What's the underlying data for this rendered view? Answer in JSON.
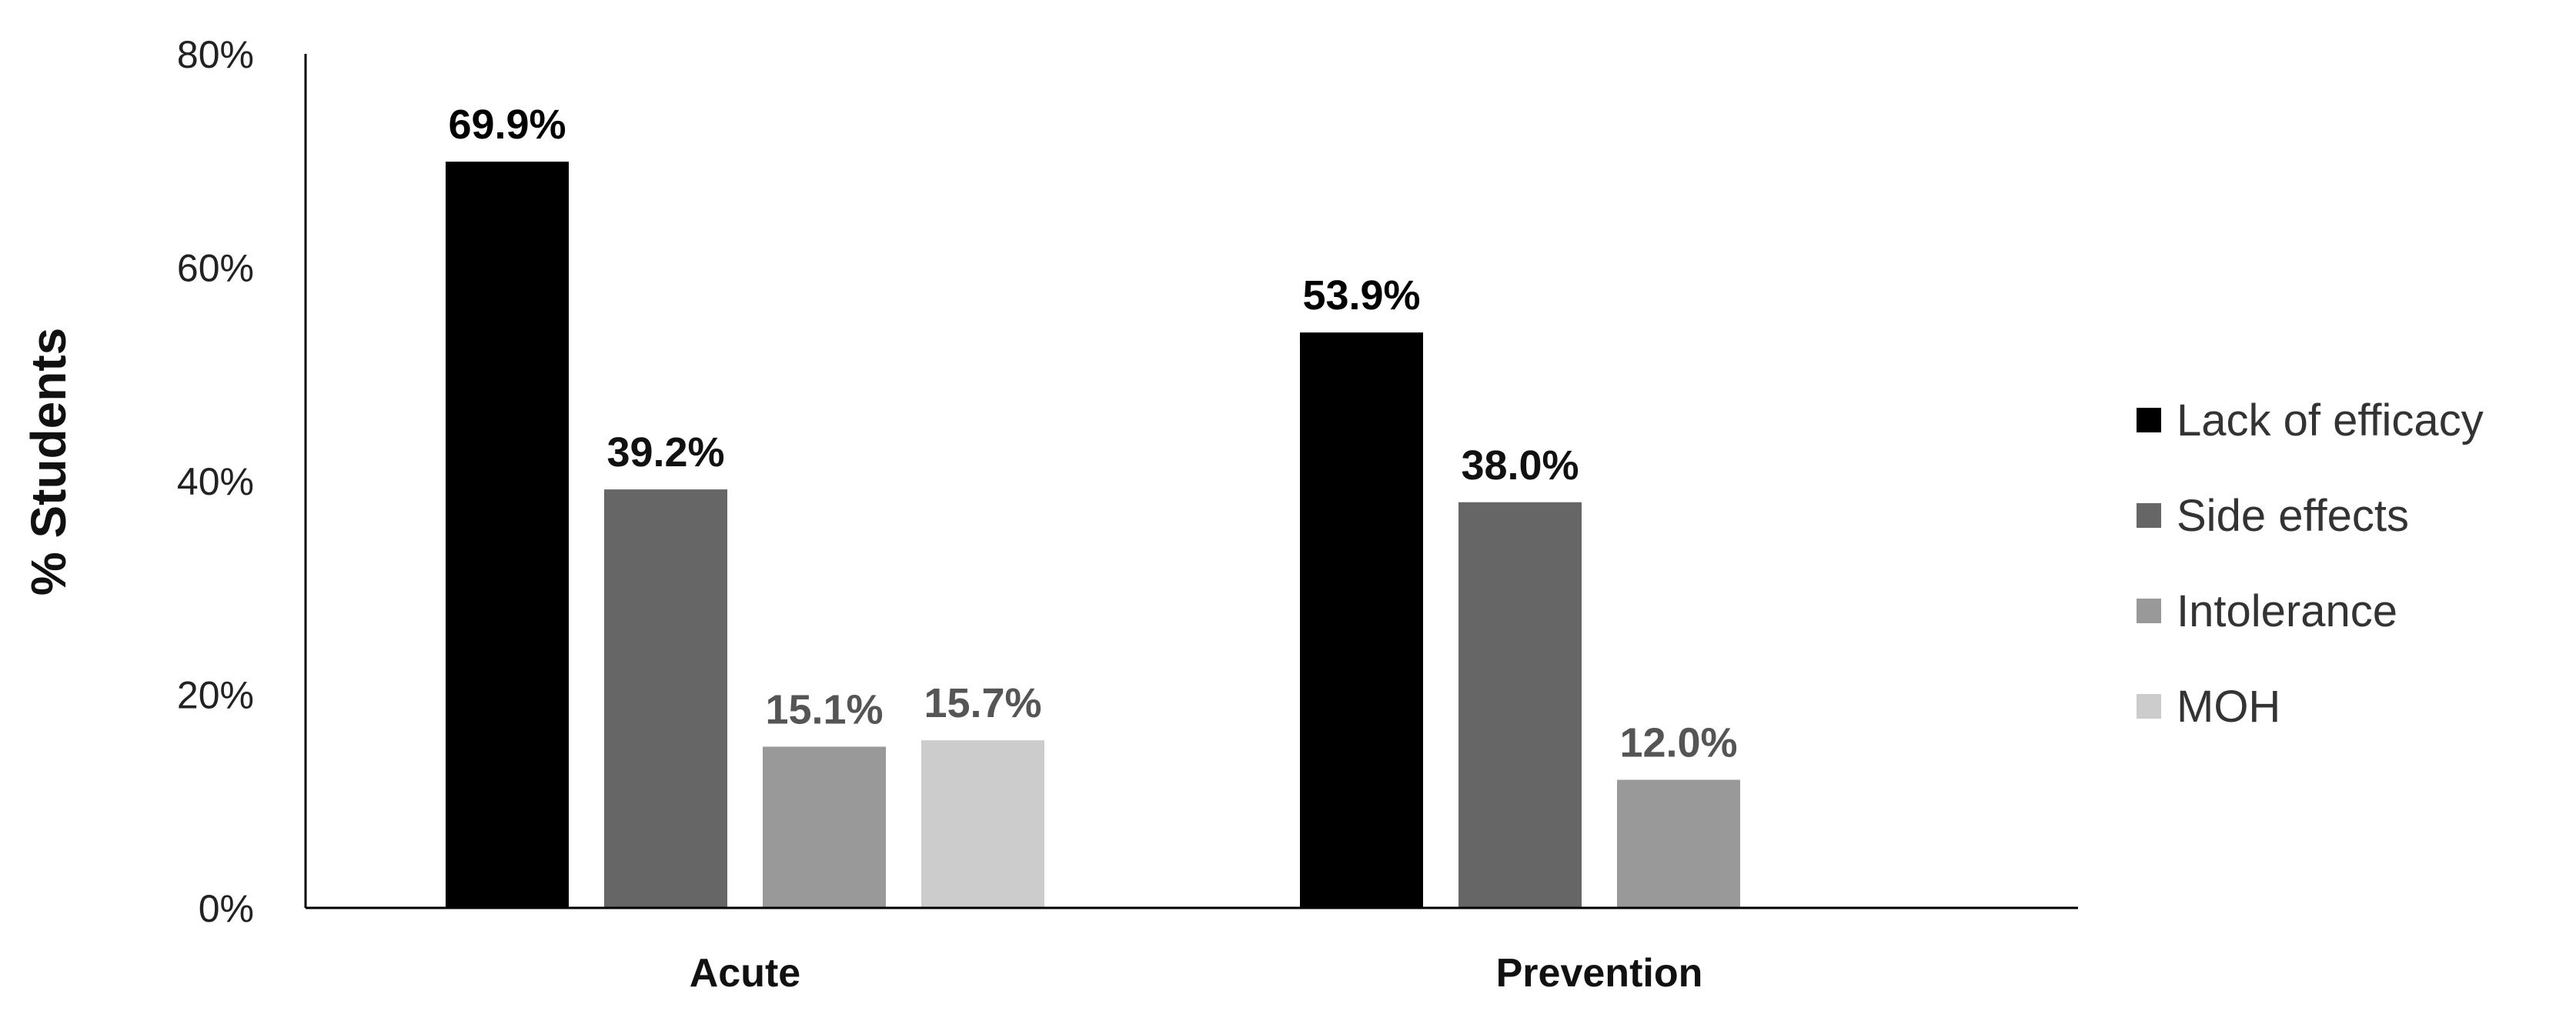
{
  "chart_data": {
    "type": "bar",
    "title": "",
    "xlabel": "",
    "ylabel": "% Students",
    "ylim": [
      0,
      80
    ],
    "yticks": [
      "0%",
      "20%",
      "40%",
      "60%",
      "80%"
    ],
    "ytick_values": [
      0,
      20,
      40,
      60,
      80
    ],
    "categories": [
      "Acute",
      "Prevention"
    ],
    "legend_position": "right",
    "grid": false,
    "series": [
      {
        "name": "Lack of efficacy",
        "color": "#000000",
        "label_color": "#000000",
        "values": [
          69.9,
          53.9
        ],
        "labels": [
          "69.9%",
          "53.9%"
        ]
      },
      {
        "name": "Side effects",
        "color": "#666666",
        "label_color": "#111111",
        "values": [
          39.2,
          38.0
        ],
        "labels": [
          "39.2%",
          "38.0%"
        ]
      },
      {
        "name": "Intolerance",
        "color": "#999999",
        "label_color": "#555555",
        "values": [
          15.1,
          12.0
        ],
        "labels": [
          "15.1%",
          "12.0%"
        ]
      },
      {
        "name": "MOH",
        "color": "#cccccc",
        "label_color": "#555555",
        "values": [
          15.7,
          null
        ],
        "labels": [
          "15.7%",
          ""
        ]
      }
    ]
  }
}
